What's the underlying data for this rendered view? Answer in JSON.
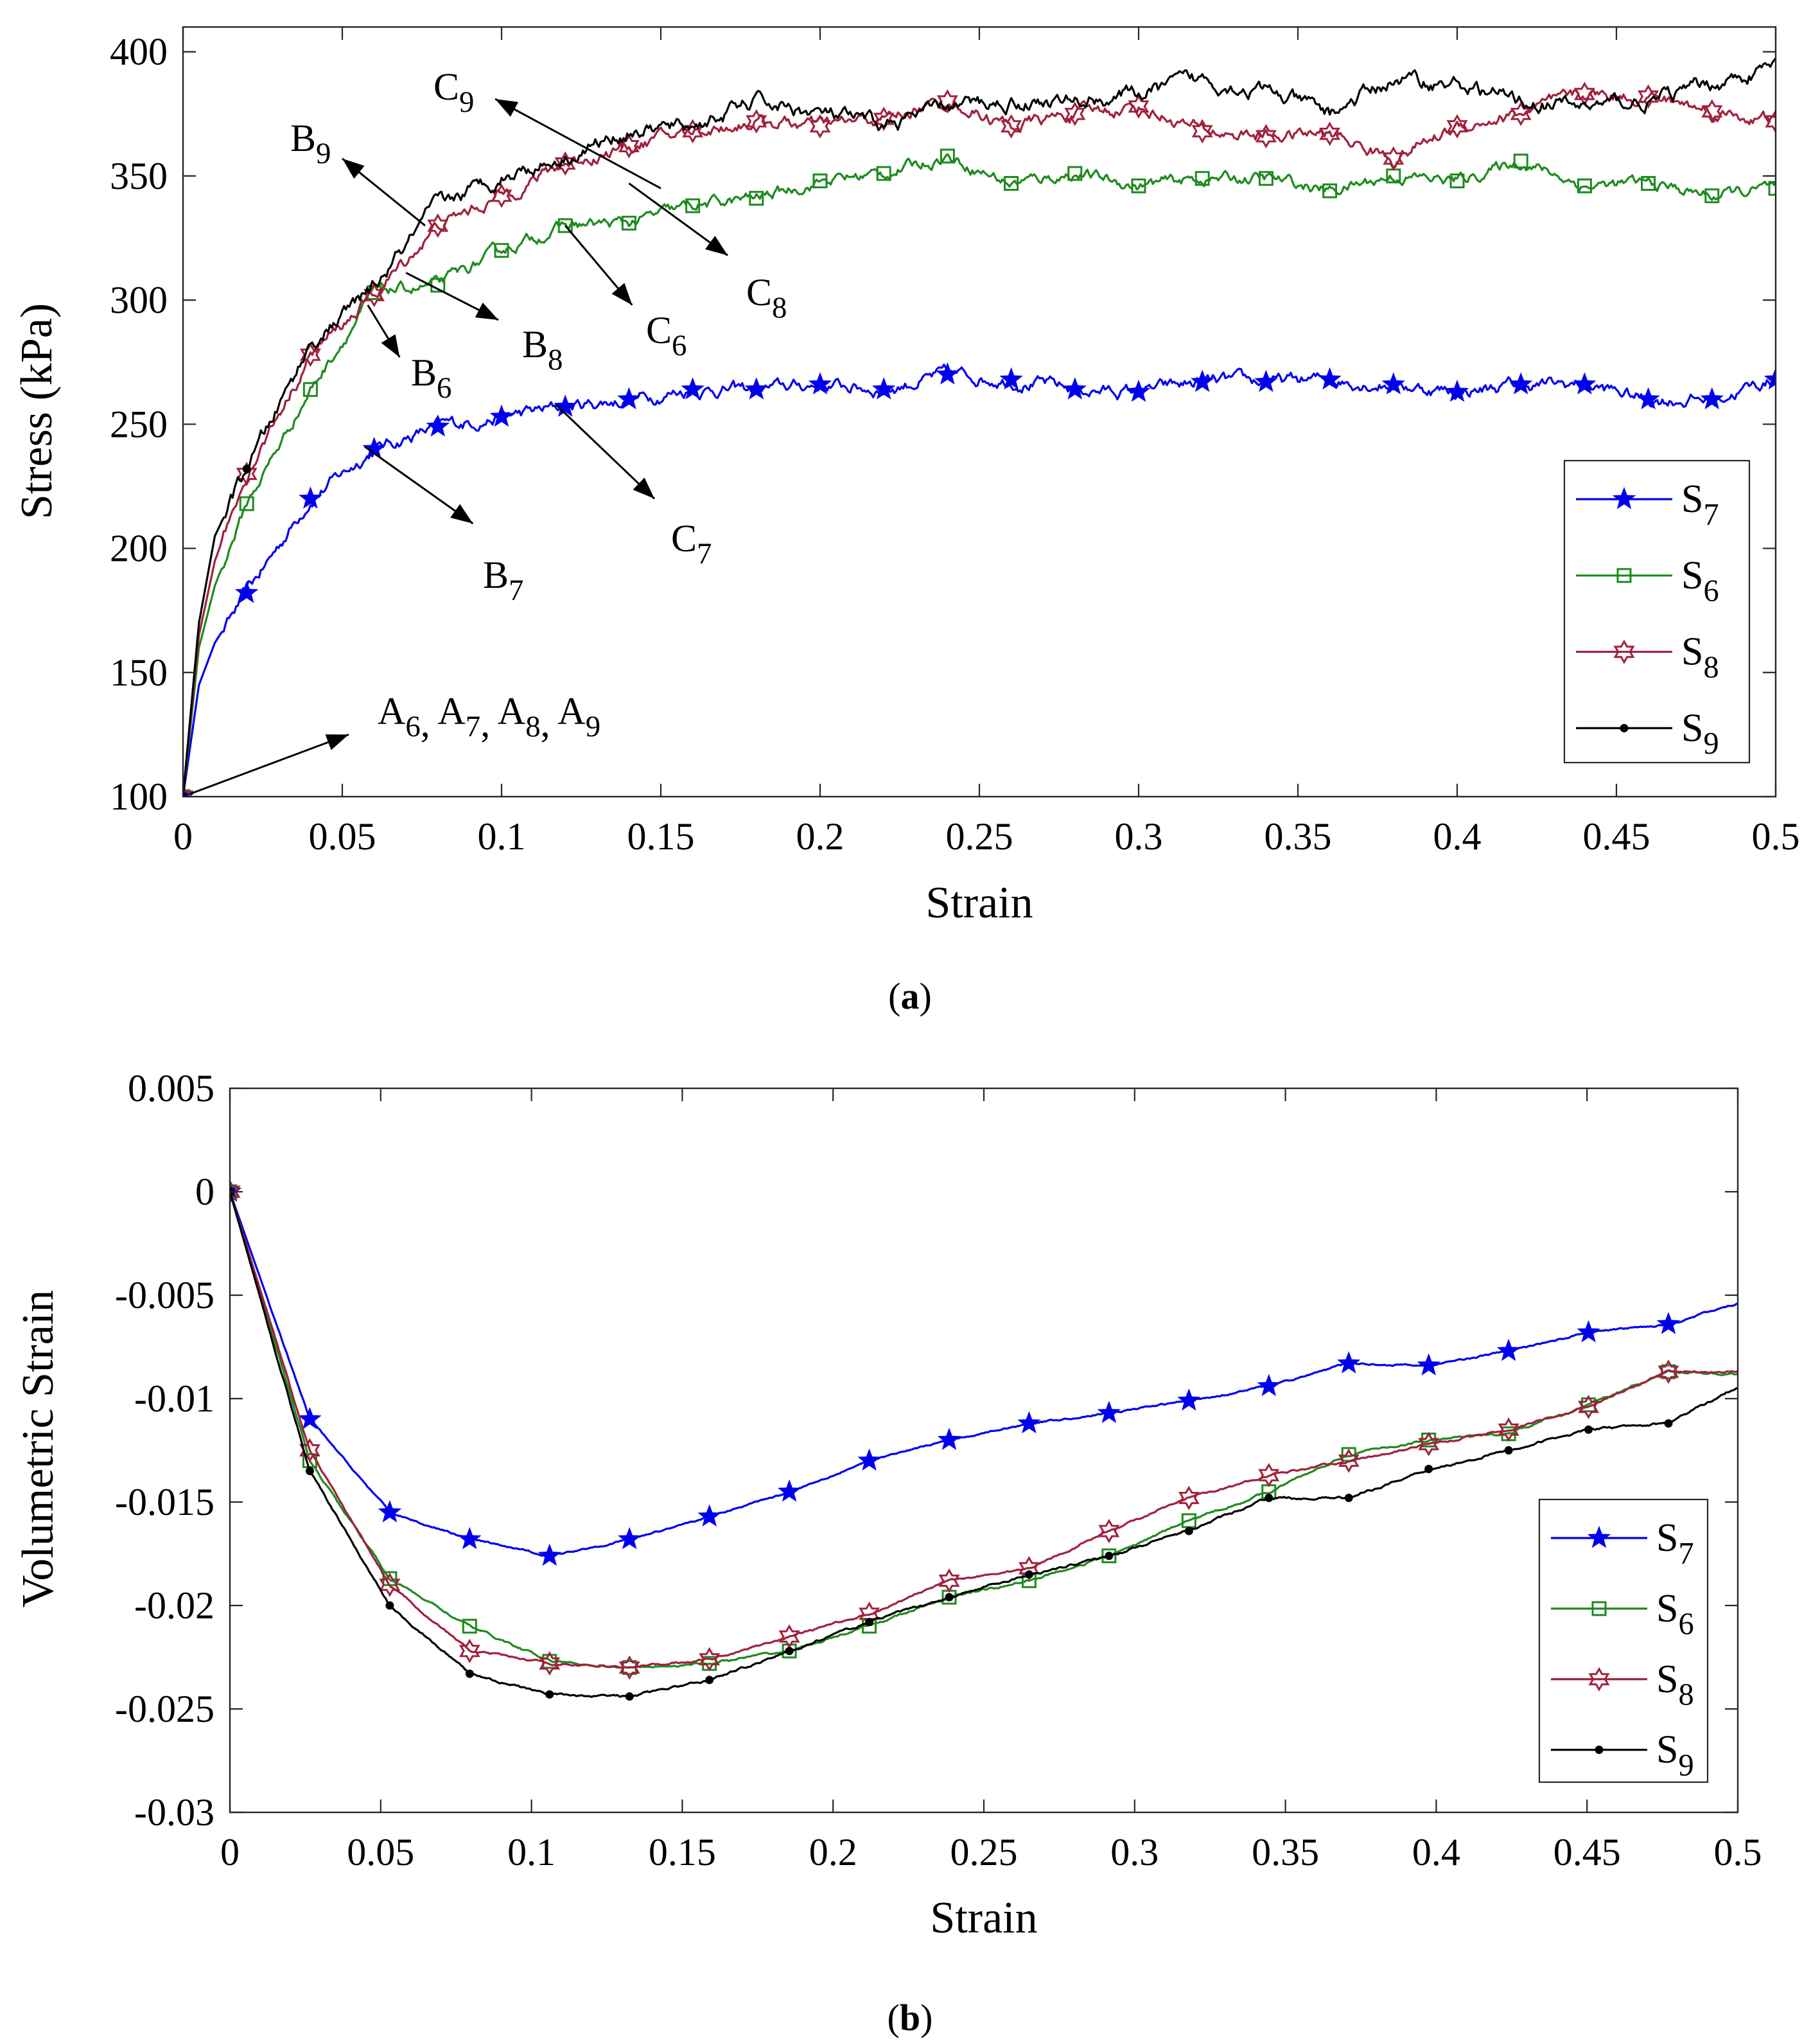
{
  "chart_data": [
    {
      "panel_label": "(a)",
      "panel_letter": "a",
      "type": "line",
      "xlabel": "Strain",
      "ylabel": "Stress (kPa)",
      "xlim": [
        0,
        0.5
      ],
      "ylim": [
        100,
        410
      ],
      "xticks": [
        "0",
        "0.05",
        "0.1",
        "0.15",
        "0.2",
        "0.25",
        "0.3",
        "0.35",
        "0.4",
        "0.45",
        "0.5"
      ],
      "xtick_values": [
        0,
        0.05,
        0.1,
        0.15,
        0.2,
        0.25,
        0.3,
        0.35,
        0.4,
        0.45,
        0.5
      ],
      "yticks": [
        "100",
        "150",
        "200",
        "250",
        "300",
        "350",
        "400"
      ],
      "ytick_values": [
        100,
        150,
        200,
        250,
        300,
        350,
        400
      ],
      "legend_position": "bottom-right",
      "series": [
        {
          "name": "S",
          "sub": "7",
          "color": "#0000ee",
          "marker": "star",
          "x": [
            0,
            0.005,
            0.01,
            0.02,
            0.04,
            0.06,
            0.08,
            0.1,
            0.12,
            0.14,
            0.16,
            0.18,
            0.2,
            0.22,
            0.24,
            0.26,
            0.28,
            0.3,
            0.32,
            0.34,
            0.36,
            0.38,
            0.4,
            0.42,
            0.44,
            0.46,
            0.48,
            0.5
          ],
          "y": [
            100,
            145,
            162,
            182,
            220,
            240,
            249,
            253,
            257,
            260,
            264,
            264,
            266,
            264,
            270,
            268,
            264,
            263,
            267,
            267,
            268,
            266,
            263,
            266,
            266,
            260,
            260,
            268
          ],
          "marker_x": [
            0,
            0.02,
            0.04,
            0.06,
            0.08,
            0.1,
            0.12,
            0.14,
            0.16,
            0.18,
            0.2,
            0.22,
            0.24,
            0.26,
            0.28,
            0.3,
            0.32,
            0.34,
            0.36,
            0.38,
            0.4,
            0.42,
            0.44,
            0.46,
            0.48,
            0.5
          ]
        },
        {
          "name": "S",
          "sub": "6",
          "color": "#1e8a1e",
          "marker": "square",
          "x": [
            0,
            0.005,
            0.01,
            0.02,
            0.04,
            0.06,
            0.08,
            0.1,
            0.12,
            0.14,
            0.16,
            0.18,
            0.2,
            0.22,
            0.24,
            0.26,
            0.28,
            0.3,
            0.32,
            0.34,
            0.36,
            0.38,
            0.4,
            0.42,
            0.44,
            0.46,
            0.48,
            0.5
          ],
          "y": [
            100,
            160,
            185,
            218,
            264,
            303,
            306,
            320,
            330,
            331,
            338,
            341,
            348,
            351,
            358,
            347,
            351,
            346,
            349,
            349,
            344,
            350,
            348,
            356,
            346,
            347,
            342,
            345
          ],
          "marker_x": [
            0,
            0.02,
            0.04,
            0.06,
            0.08,
            0.1,
            0.12,
            0.14,
            0.16,
            0.18,
            0.2,
            0.22,
            0.24,
            0.26,
            0.28,
            0.3,
            0.32,
            0.34,
            0.36,
            0.38,
            0.4,
            0.42,
            0.44,
            0.46,
            0.48,
            0.5
          ]
        },
        {
          "name": "S",
          "sub": "8",
          "color": "#a0213c",
          "marker": "hexagram",
          "x": [
            0,
            0.005,
            0.01,
            0.02,
            0.04,
            0.06,
            0.08,
            0.1,
            0.12,
            0.14,
            0.16,
            0.18,
            0.2,
            0.22,
            0.24,
            0.26,
            0.28,
            0.3,
            0.32,
            0.34,
            0.36,
            0.38,
            0.4,
            0.42,
            0.44,
            0.46,
            0.48,
            0.5
          ],
          "y": [
            100,
            165,
            195,
            230,
            278,
            302,
            330,
            342,
            355,
            362,
            368,
            372,
            370,
            373,
            380,
            370,
            375,
            378,
            368,
            366,
            367,
            357,
            370,
            375,
            383,
            382,
            376,
            372
          ],
          "marker_x": [
            0,
            0.02,
            0.04,
            0.06,
            0.08,
            0.1,
            0.12,
            0.14,
            0.16,
            0.18,
            0.2,
            0.22,
            0.24,
            0.26,
            0.28,
            0.3,
            0.32,
            0.34,
            0.36,
            0.38,
            0.4,
            0.42,
            0.44,
            0.46,
            0.48,
            0.5
          ]
        },
        {
          "name": "S",
          "sub": "9",
          "color": "#000000",
          "marker": "dot",
          "x": [
            0,
            0.005,
            0.01,
            0.02,
            0.04,
            0.06,
            0.08,
            0.1,
            0.12,
            0.14,
            0.16,
            0.18,
            0.2,
            0.22,
            0.24,
            0.26,
            0.28,
            0.3,
            0.32,
            0.34,
            0.36,
            0.38,
            0.4,
            0.42,
            0.44,
            0.46,
            0.48,
            0.5
          ],
          "y": [
            100,
            170,
            205,
            232,
            282,
            305,
            338,
            350,
            358,
            368,
            370,
            380,
            375,
            370,
            378,
            380,
            380,
            383,
            389,
            384,
            375,
            389,
            387,
            380,
            378,
            380,
            387,
            394
          ],
          "marker_x": [
            0,
            0.02
          ]
        }
      ],
      "annotations": [
        {
          "base": "A",
          "sub": "6",
          "tail": [
            0.002,
            101
          ],
          "head": [
            0.052,
            125
          ]
        },
        {
          "base": "A",
          "sub": "7"
        },
        {
          "base": "A",
          "sub": "8"
        },
        {
          "base": "A",
          "sub": "9"
        },
        {
          "base": "B",
          "sub": "6",
          "tail": [
            0.058,
            298
          ],
          "head": [
            0.068,
            277
          ]
        },
        {
          "base": "B",
          "sub": "7",
          "tail": [
            0.057,
            241
          ],
          "head": [
            0.091,
            210
          ]
        },
        {
          "base": "B",
          "sub": "8",
          "tail": [
            0.07,
            311
          ],
          "head": [
            0.099,
            292
          ]
        },
        {
          "base": "B",
          "sub": "9",
          "tail": [
            0.076,
            330
          ],
          "head": [
            0.05,
            357
          ]
        },
        {
          "base": "C",
          "sub": "6",
          "tail": [
            0.12,
            330
          ],
          "head": [
            0.141,
            298
          ]
        },
        {
          "base": "C",
          "sub": "7",
          "tail": [
            0.117,
            258
          ],
          "head": [
            0.148,
            220
          ]
        },
        {
          "base": "C",
          "sub": "8",
          "tail": [
            0.14,
            347
          ],
          "head": [
            0.171,
            318
          ]
        },
        {
          "base": "C",
          "sub": "9",
          "tail": [
            0.15,
            345
          ],
          "head": [
            0.098,
            381
          ]
        }
      ]
    },
    {
      "panel_label": "(b)",
      "panel_letter": "b",
      "type": "line",
      "xlabel": "Strain",
      "ylabel": "Volumetric Strain",
      "xlim": [
        0,
        0.5
      ],
      "ylim": [
        -0.03,
        0.005
      ],
      "xticks": [
        "0",
        "0.05",
        "0.1",
        "0.15",
        "0.2",
        "0.25",
        "0.3",
        "0.35",
        "0.4",
        "0.45",
        "0.5"
      ],
      "xtick_values": [
        0,
        0.05,
        0.1,
        0.15,
        0.2,
        0.25,
        0.3,
        0.35,
        0.4,
        0.45,
        0.5
      ],
      "yticks": [
        "0.005",
        "0",
        "-0.005",
        "-0.01",
        "-0.015",
        "-0.02",
        "-0.025",
        "-0.03"
      ],
      "ytick_values": [
        0.005,
        0,
        -0.005,
        -0.01,
        -0.015,
        -0.02,
        -0.025,
        -0.03
      ],
      "legend_position": "bottom-right",
      "series": [
        {
          "name": "S",
          "sub": "7",
          "color": "#0000ee",
          "marker": "star",
          "x": [
            0,
            0.0265,
            0.053,
            0.0795,
            0.106,
            0.1325,
            0.159,
            0.1855,
            0.212,
            0.2385,
            0.265,
            0.2915,
            0.318,
            0.3445,
            0.371,
            0.3975,
            0.424,
            0.4505,
            0.477,
            0.5
          ],
          "y": [
            0,
            -0.011,
            -0.0155,
            -0.0168,
            -0.0176,
            -0.0168,
            -0.0157,
            -0.0145,
            -0.013,
            -0.012,
            -0.0112,
            -0.0107,
            -0.0101,
            -0.0094,
            -0.0083,
            -0.0084,
            -0.0077,
            -0.0068,
            -0.0064,
            -0.0054
          ],
          "marker_x": [
            0,
            0.0265,
            0.053,
            0.0795,
            0.106,
            0.1325,
            0.159,
            0.1855,
            0.212,
            0.2385,
            0.265,
            0.2915,
            0.318,
            0.3445,
            0.371,
            0.3975,
            0.424,
            0.4505,
            0.477
          ]
        },
        {
          "name": "S",
          "sub": "6",
          "color": "#1e8a1e",
          "marker": "square",
          "x": [
            0,
            0.0265,
            0.053,
            0.0795,
            0.106,
            0.1325,
            0.159,
            0.1855,
            0.212,
            0.2385,
            0.265,
            0.2915,
            0.318,
            0.3445,
            0.371,
            0.3975,
            0.424,
            0.4505,
            0.477,
            0.5
          ],
          "y": [
            0,
            -0.013,
            -0.0187,
            -0.021,
            -0.0227,
            -0.023,
            -0.0228,
            -0.0222,
            -0.021,
            -0.0196,
            -0.0188,
            -0.0176,
            -0.0159,
            -0.0145,
            -0.0127,
            -0.012,
            -0.0117,
            -0.0103,
            -0.0087,
            -0.0088
          ],
          "marker_x": [
            0,
            0.0265,
            0.053,
            0.0795,
            0.106,
            0.1325,
            0.159,
            0.1855,
            0.212,
            0.2385,
            0.265,
            0.2915,
            0.318,
            0.3445,
            0.371,
            0.3975,
            0.424,
            0.4505,
            0.477
          ]
        },
        {
          "name": "S",
          "sub": "8",
          "color": "#a0213c",
          "marker": "hexagram",
          "x": [
            0,
            0.0265,
            0.053,
            0.0795,
            0.106,
            0.1325,
            0.159,
            0.1855,
            0.212,
            0.2385,
            0.265,
            0.2915,
            0.318,
            0.3445,
            0.371,
            0.3975,
            0.424,
            0.4505,
            0.477,
            0.5
          ],
          "y": [
            0,
            -0.0125,
            -0.019,
            -0.0222,
            -0.0228,
            -0.023,
            -0.0226,
            -0.0215,
            -0.0204,
            -0.0188,
            -0.0182,
            -0.0164,
            -0.0148,
            -0.0137,
            -0.013,
            -0.0122,
            -0.0115,
            -0.0104,
            -0.0087,
            -0.0087
          ],
          "marker_x": [
            0,
            0.0265,
            0.053,
            0.0795,
            0.106,
            0.1325,
            0.159,
            0.1855,
            0.212,
            0.2385,
            0.265,
            0.2915,
            0.318,
            0.3445,
            0.371,
            0.3975,
            0.424,
            0.4505,
            0.477
          ]
        },
        {
          "name": "S",
          "sub": "9",
          "color": "#000000",
          "marker": "dot",
          "x": [
            0,
            0.0265,
            0.053,
            0.0795,
            0.106,
            0.1325,
            0.159,
            0.1855,
            0.212,
            0.2385,
            0.265,
            0.2915,
            0.318,
            0.3445,
            0.371,
            0.3975,
            0.424,
            0.4505,
            0.477,
            0.5
          ],
          "y": [
            0,
            -0.0135,
            -0.02,
            -0.0233,
            -0.0243,
            -0.0244,
            -0.0236,
            -0.0222,
            -0.0208,
            -0.0196,
            -0.0185,
            -0.0176,
            -0.0164,
            -0.0148,
            -0.0148,
            -0.0134,
            -0.0125,
            -0.0115,
            -0.0112,
            -0.0094
          ],
          "marker_x": [
            0,
            0.0265,
            0.053,
            0.0795,
            0.106,
            0.1325,
            0.159,
            0.1855,
            0.212,
            0.2385,
            0.265,
            0.2915,
            0.318,
            0.3445,
            0.371,
            0.3975,
            0.424,
            0.4505,
            0.477
          ]
        }
      ]
    }
  ]
}
